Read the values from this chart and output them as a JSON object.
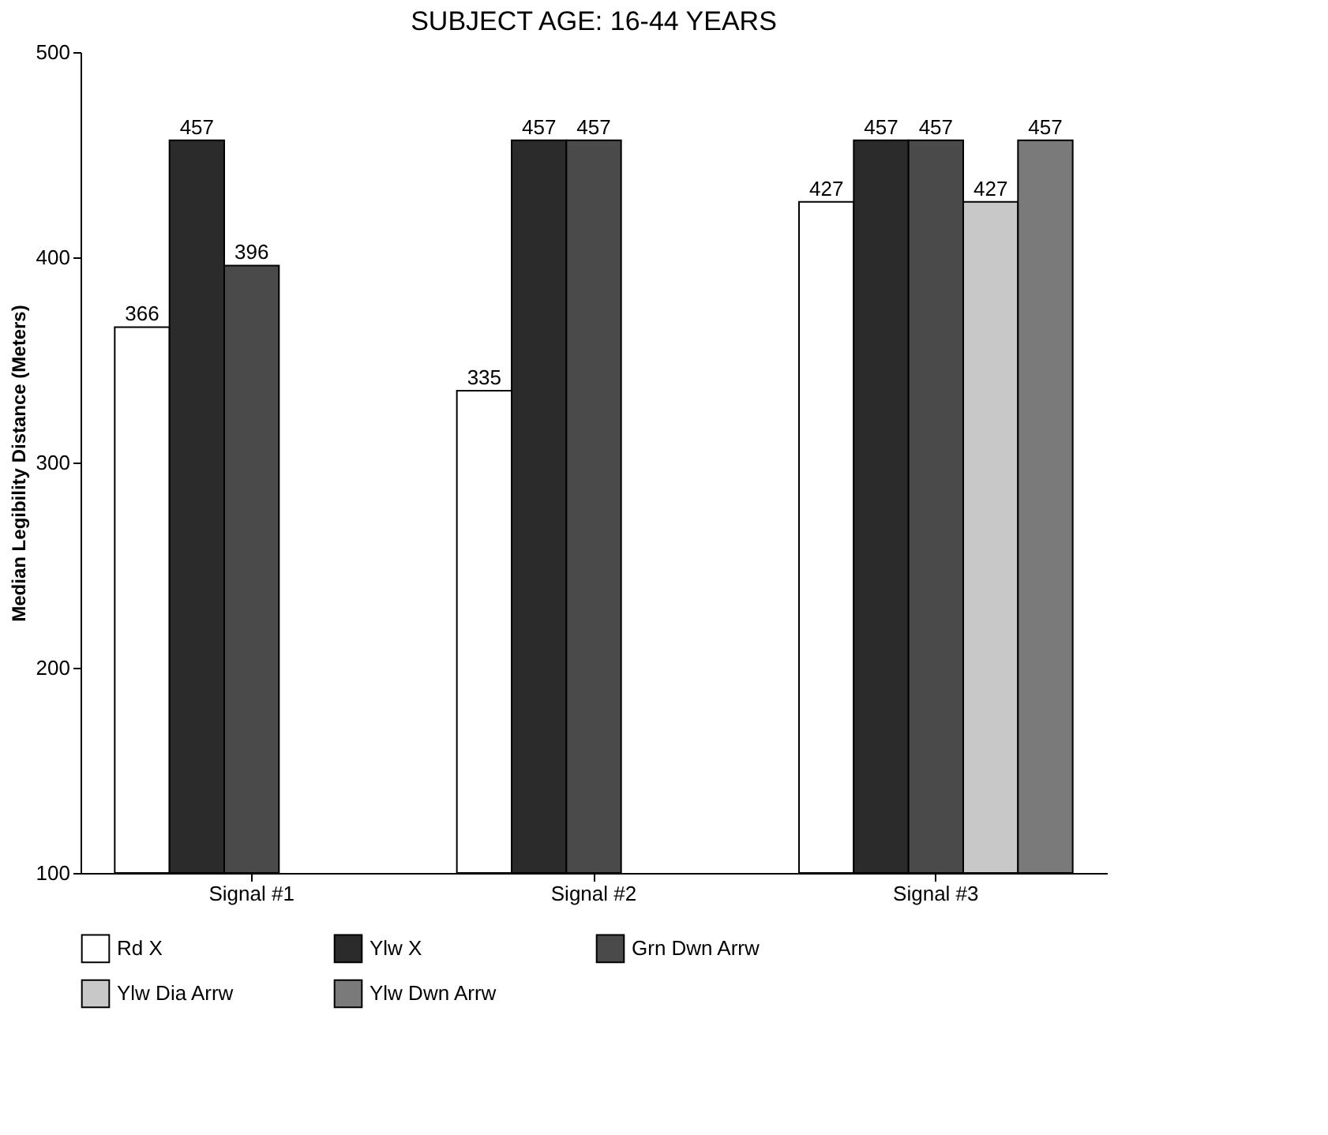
{
  "chart_data": {
    "type": "bar",
    "title": "SUBJECT AGE: 16-44 YEARS",
    "ylabel": "Median Legibility Distance (Meters)",
    "categories": [
      "Signal #1",
      "Signal #2",
      "Signal #3"
    ],
    "series": [
      {
        "name": "Rd X",
        "color": "#ffffff",
        "values": [
          366,
          335,
          427
        ]
      },
      {
        "name": "Ylw X",
        "color": "#2b2b2b",
        "values": [
          457,
          457,
          457
        ]
      },
      {
        "name": "Grn Dwn Arrw",
        "color": "#4a4a4a",
        "values": [
          396,
          457,
          457
        ]
      },
      {
        "name": "Ylw Dia Arrw",
        "color": "#c8c8c8",
        "values": [
          null,
          null,
          427
        ]
      },
      {
        "name": "Ylw Dwn Arrw",
        "color": "#7a7a7a",
        "values": [
          null,
          null,
          457
        ]
      }
    ],
    "ylim": [
      100,
      500
    ],
    "yticks": [
      100,
      200,
      300,
      400,
      500
    ],
    "grid": false,
    "legend": "bottom",
    "data_labels": true
  }
}
